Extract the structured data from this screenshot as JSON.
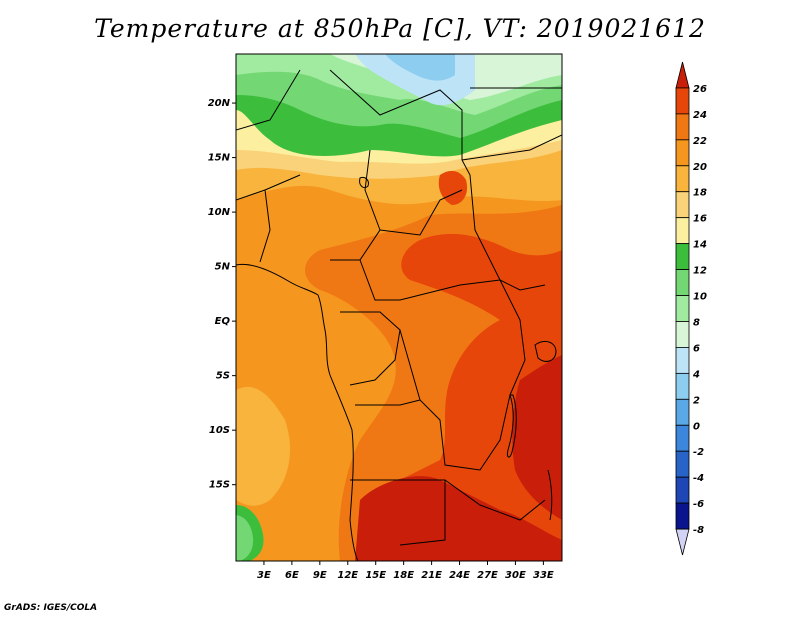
{
  "title": "Temperature at 850hPa [C], VT: 2019021612",
  "credit": "GrADS: IGES/COLA",
  "map": {
    "region": "Central Africa",
    "lon_range_deg": [
      0,
      35
    ],
    "lat_range_deg": [
      -22,
      24.5
    ],
    "lat_labels": [
      "20N",
      "15N",
      "10N",
      "5N",
      "EQ",
      "5S",
      "10S",
      "15S"
    ],
    "lat_label_values": [
      20,
      15,
      10,
      5,
      0,
      -5,
      -10,
      -15
    ],
    "lon_labels": [
      "3E",
      "6E",
      "9E",
      "12E",
      "15E",
      "18E",
      "21E",
      "24E",
      "27E",
      "30E",
      "33E"
    ],
    "lon_label_values": [
      3,
      6,
      9,
      12,
      15,
      18,
      21,
      24,
      27,
      30,
      33
    ]
  },
  "colorbar": {
    "unit": "C",
    "labels": [
      "26",
      "24",
      "22",
      "20",
      "18",
      "16",
      "14",
      "12",
      "10",
      "8",
      "6",
      "4",
      "2",
      "0",
      "-2",
      "-4",
      "-6",
      "-8"
    ],
    "colors": [
      "#c81e0a",
      "#e6460a",
      "#f07814",
      "#f5961e",
      "#f8b43c",
      "#fad27a",
      "#fcefa0",
      "#3cbe3c",
      "#73d773",
      "#a0eba0",
      "#d8f5d8",
      "#bde3f6",
      "#8ccdf0",
      "#5aa8e6",
      "#3c87dc",
      "#2864c8",
      "#1e46b4",
      "#0a148c",
      "#d2d2f5"
    ]
  }
}
